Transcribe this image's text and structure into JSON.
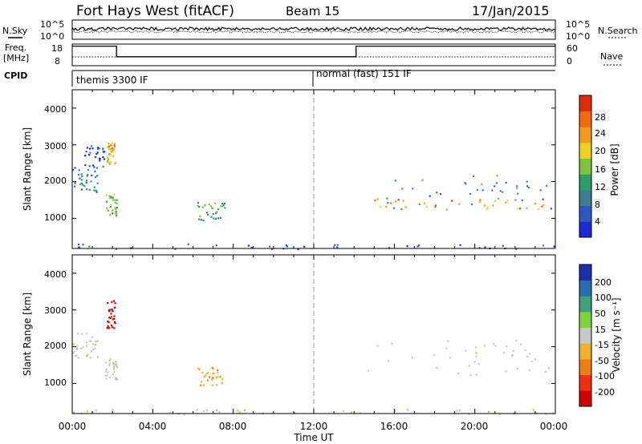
{
  "header": {
    "title": "Fort Hays West (fitACF)",
    "beam": "Beam 15",
    "date": "17/Jan/2015"
  },
  "status_panels": {
    "nsky_label": "N.Sky",
    "nsky_ticks": [
      "10^5",
      "10^0"
    ],
    "nsearch_label": "N.Search",
    "nsearch_ticks": [
      "10^5",
      "10^0"
    ],
    "freq_label_line1": "Freq.",
    "freq_label_line2": "[MHz]",
    "freq_ticks": [
      "18",
      "8"
    ],
    "nave_label": "Nave",
    "nave_ticks": [
      "60",
      "0"
    ],
    "cpid_label": "CPID",
    "cpid_programs": [
      {
        "name": "themis 3300 IF",
        "start_hour": 0
      },
      {
        "name": "normal (fast) 151 IF",
        "start_hour": 12
      }
    ],
    "freq_segments": [
      {
        "start": 0,
        "end": 2.2,
        "freq": 17.4
      },
      {
        "start": 2.2,
        "end": 14.1,
        "freq": 12.5
      },
      {
        "start": 14.1,
        "end": 24,
        "freq": 17.4
      }
    ]
  },
  "colors": {
    "power_scale": [
      "#1c2bd6",
      "#2f57c0",
      "#3f7d93",
      "#2f9d6b",
      "#7dc43c",
      "#f0d020",
      "#f59a1a",
      "#f06a10",
      "#e02a0a"
    ],
    "velocity_scale": [
      "#d40000",
      "#ee3010",
      "#f07d12",
      "#f0b030",
      "#c8c8c8",
      "#7fd43a",
      "#3fa07a",
      "#2a6db0",
      "#1a2fa8"
    ],
    "grey_ground": "#c8c8c8"
  },
  "chart_data": [
    {
      "type": "heatmap",
      "title": "",
      "xlabel": "Time UT",
      "ylabel": "Slant Range [km]",
      "xlim_hours": [
        0,
        24
      ],
      "ylim_km": [
        180,
        4500
      ],
      "yticks": [
        "1000",
        "2000",
        "3000",
        "4000"
      ],
      "xticks": [
        "00:00",
        "04:00",
        "08:00",
        "12:00",
        "16:00",
        "20:00",
        "00:00"
      ],
      "colorbar_label": "Power [dB]",
      "colorbar_ticks": [
        "4",
        "8",
        "12",
        "16",
        "20",
        "24",
        "28"
      ],
      "colorbar_range": [
        0,
        30
      ],
      "regions": [
        {
          "t0": 0.0,
          "t1": 1.3,
          "r0": 1700,
          "r1": 2400,
          "level": 8
        },
        {
          "t0": 0.6,
          "t1": 1.6,
          "r0": 2300,
          "r1": 3000,
          "level": 4
        },
        {
          "t0": 1.7,
          "t1": 2.1,
          "r0": 2500,
          "r1": 3100,
          "level": 20
        },
        {
          "t0": 1.6,
          "t1": 2.2,
          "r0": 1100,
          "r1": 1700,
          "level": 14
        },
        {
          "t0": 6.2,
          "t1": 7.6,
          "r0": 950,
          "r1": 1450,
          "level": 12
        },
        {
          "t0": 14.5,
          "t1": 23.8,
          "r0": 1250,
          "r1": 2200,
          "level": 10
        },
        {
          "t0": 14.8,
          "t1": 23.5,
          "r0": 1250,
          "r1": 1550,
          "level": 22
        },
        {
          "t0": 0.0,
          "t1": 24.0,
          "r0": 180,
          "r1": 320,
          "level": 4
        }
      ]
    },
    {
      "type": "heatmap",
      "title": "",
      "xlabel": "Time UT",
      "ylabel": "Slant Range [km]",
      "xlim_hours": [
        0,
        24
      ],
      "ylim_km": [
        180,
        4500
      ],
      "yticks": [
        "1000",
        "2000",
        "3000",
        "4000"
      ],
      "xticks": [
        "00:00",
        "04:00",
        "08:00",
        "12:00",
        "16:00",
        "20:00",
        "00:00"
      ],
      "colorbar_label": "Velocity [m s⁻¹]",
      "colorbar_ticks": [
        "200",
        "100",
        "50",
        "15",
        "-15",
        "-50",
        "-100",
        "-200"
      ],
      "colorbar_range": [
        -250,
        250
      ],
      "regions": [
        {
          "t0": 0.0,
          "t1": 1.3,
          "r0": 1700,
          "r1": 2400,
          "level": 0
        },
        {
          "t0": 1.7,
          "t1": 2.1,
          "r0": 2500,
          "r1": 3300,
          "level": -220
        },
        {
          "t0": 1.6,
          "t1": 2.2,
          "r0": 1100,
          "r1": 1700,
          "level": 0
        },
        {
          "t0": 6.2,
          "t1": 7.6,
          "r0": 950,
          "r1": 1450,
          "level": -70
        },
        {
          "t0": 14.5,
          "t1": 23.8,
          "r0": 1250,
          "r1": 2200,
          "level": 0
        },
        {
          "t0": 0.0,
          "t1": 24.0,
          "r0": 180,
          "r1": 320,
          "level": -30
        }
      ]
    }
  ]
}
